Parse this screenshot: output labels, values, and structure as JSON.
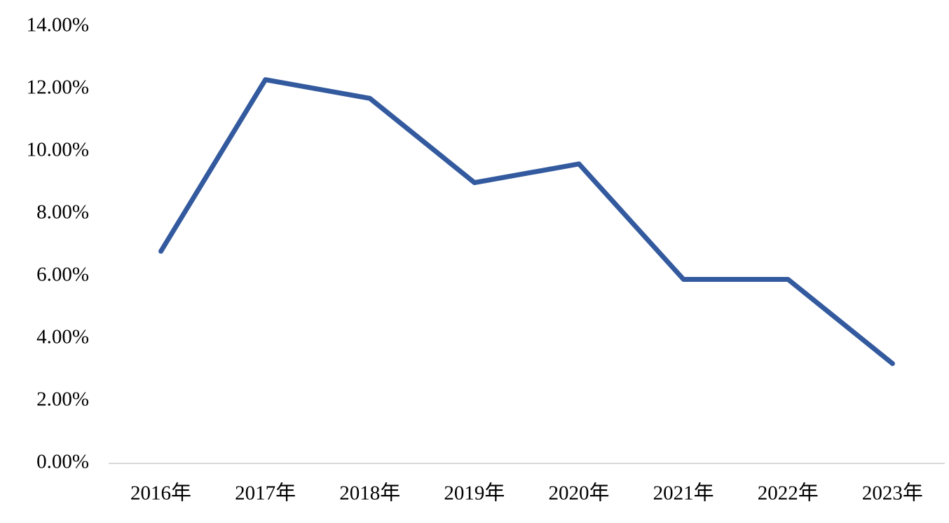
{
  "chart_data": {
    "type": "line",
    "categories": [
      "2016年",
      "2017年",
      "2018年",
      "2019年",
      "2020年",
      "2021年",
      "2022年",
      "2023年"
    ],
    "values": [
      6.8,
      12.3,
      11.7,
      9.0,
      9.6,
      5.9,
      5.9,
      3.2
    ],
    "color": "#335a9e",
    "ylim": [
      0,
      14
    ],
    "yticks": [
      {
        "value": 0,
        "label": "0.00%"
      },
      {
        "value": 2,
        "label": "2.00%"
      },
      {
        "value": 4,
        "label": "4.00%"
      },
      {
        "value": 6,
        "label": "6.00%"
      },
      {
        "value": 8,
        "label": "8.00%"
      },
      {
        "value": 10,
        "label": "10.00%"
      },
      {
        "value": 12,
        "label": "12.00%"
      },
      {
        "value": 14,
        "label": "14.00%"
      }
    ],
    "grid": false
  }
}
